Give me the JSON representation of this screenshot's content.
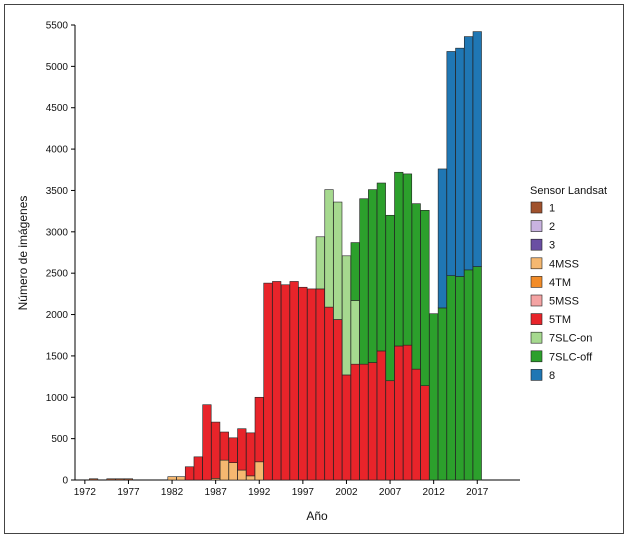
{
  "chart_data": {
    "type": "bar",
    "stacked": true,
    "xlabel": "Año",
    "ylabel": "Número de imágenes",
    "ylim": [
      0,
      5500
    ],
    "yticks": [
      0,
      500,
      1000,
      1500,
      2000,
      2500,
      3000,
      3500,
      4000,
      4500,
      5000,
      5500
    ],
    "xtick_labels": [
      "1972",
      "1977",
      "1982",
      "1987",
      "1992",
      "1997",
      "2002",
      "2007",
      "2012",
      "2017"
    ],
    "categories": [
      "1972",
      "1973",
      "1974",
      "1975",
      "1976",
      "1977",
      "1978",
      "1979",
      "1980",
      "1981",
      "1982",
      "1983",
      "1984",
      "1985",
      "1986",
      "1987",
      "1988",
      "1989",
      "1990",
      "1991",
      "1992",
      "1993",
      "1994",
      "1995",
      "1996",
      "1997",
      "1998",
      "1999",
      "2000",
      "2001",
      "2002",
      "2003",
      "2004",
      "2005",
      "2006",
      "2007",
      "2008",
      "2009",
      "2010",
      "2011",
      "2012",
      "2013",
      "2014",
      "2015",
      "2016",
      "2017"
    ],
    "legend_title": "Sensor Landsat",
    "series": [
      {
        "name": "1",
        "color": "#a0522d",
        "values": [
          0,
          15,
          0,
          15,
          15,
          15,
          0,
          0,
          0,
          0,
          0,
          0,
          0,
          0,
          0,
          0,
          0,
          0,
          0,
          0,
          0,
          0,
          0,
          0,
          0,
          0,
          0,
          0,
          0,
          0,
          0,
          0,
          0,
          0,
          0,
          0,
          0,
          0,
          0,
          0,
          0,
          0,
          0,
          0,
          0,
          0
        ]
      },
      {
        "name": "2",
        "color": "#c9b3e0",
        "values": [
          0,
          0,
          0,
          0,
          0,
          0,
          0,
          0,
          0,
          0,
          0,
          0,
          0,
          0,
          0,
          0,
          0,
          0,
          0,
          0,
          0,
          0,
          0,
          0,
          0,
          0,
          0,
          0,
          0,
          0,
          0,
          0,
          0,
          0,
          0,
          0,
          0,
          0,
          0,
          0,
          0,
          0,
          0,
          0,
          0,
          0
        ]
      },
      {
        "name": "3",
        "color": "#6a4fa3",
        "values": [
          0,
          0,
          0,
          0,
          0,
          0,
          0,
          0,
          0,
          0,
          0,
          0,
          0,
          0,
          0,
          0,
          0,
          0,
          0,
          0,
          0,
          0,
          0,
          0,
          0,
          0,
          0,
          0,
          0,
          0,
          0,
          0,
          0,
          0,
          0,
          0,
          0,
          0,
          0,
          0,
          0,
          0,
          0,
          0,
          0,
          0
        ]
      },
      {
        "name": "4MSS",
        "color": "#f5b870",
        "values": [
          0,
          0,
          0,
          0,
          0,
          0,
          0,
          0,
          0,
          0,
          40,
          40,
          0,
          0,
          0,
          20,
          240,
          210,
          120,
          50,
          220,
          0,
          0,
          0,
          0,
          0,
          0,
          0,
          0,
          0,
          0,
          0,
          0,
          0,
          0,
          0,
          0,
          0,
          0,
          0,
          0,
          0,
          0,
          0,
          0,
          0
        ]
      },
      {
        "name": "4TM",
        "color": "#f28c28",
        "values": [
          0,
          0,
          0,
          0,
          0,
          0,
          0,
          0,
          0,
          0,
          0,
          0,
          0,
          0,
          0,
          0,
          0,
          0,
          0,
          0,
          0,
          0,
          0,
          0,
          0,
          0,
          0,
          0,
          0,
          0,
          0,
          0,
          0,
          0,
          0,
          0,
          0,
          0,
          0,
          0,
          0,
          0,
          0,
          0,
          0,
          0
        ]
      },
      {
        "name": "5MSS",
        "color": "#f4a3a3",
        "values": [
          0,
          0,
          0,
          0,
          0,
          0,
          0,
          0,
          0,
          0,
          0,
          0,
          0,
          0,
          0,
          0,
          0,
          0,
          0,
          0,
          0,
          0,
          0,
          0,
          0,
          0,
          0,
          0,
          0,
          0,
          0,
          0,
          0,
          0,
          0,
          0,
          0,
          0,
          0,
          0,
          0,
          0,
          0,
          0,
          0,
          0
        ]
      },
      {
        "name": "5TM",
        "color": "#e8242a",
        "values": [
          0,
          0,
          0,
          0,
          0,
          0,
          0,
          0,
          0,
          0,
          0,
          0,
          160,
          280,
          910,
          680,
          340,
          300,
          500,
          520,
          780,
          2380,
          2400,
          2360,
          2400,
          2330,
          2310,
          2310,
          2090,
          1940,
          1270,
          1400,
          1400,
          1420,
          1560,
          1200,
          1620,
          1630,
          1340,
          1140,
          0,
          0,
          0,
          0,
          0,
          0
        ]
      },
      {
        "name": "7SLC-on",
        "color": "#a6d98f",
        "values": [
          0,
          0,
          0,
          0,
          0,
          0,
          0,
          0,
          0,
          0,
          0,
          0,
          0,
          0,
          0,
          0,
          0,
          0,
          0,
          0,
          0,
          0,
          0,
          0,
          0,
          0,
          0,
          630,
          1420,
          1420,
          1440,
          770,
          0,
          0,
          0,
          0,
          0,
          0,
          0,
          0,
          0,
          0,
          0,
          0,
          0,
          0
        ]
      },
      {
        "name": "7SLC-off",
        "color": "#2ca02c",
        "values": [
          0,
          0,
          0,
          0,
          0,
          0,
          0,
          0,
          0,
          0,
          0,
          0,
          0,
          0,
          0,
          0,
          0,
          0,
          0,
          0,
          0,
          0,
          0,
          0,
          0,
          0,
          0,
          0,
          0,
          0,
          0,
          700,
          2000,
          2090,
          2030,
          2000,
          2100,
          2070,
          2000,
          2120,
          2010,
          2080,
          2470,
          2460,
          2540,
          2580
        ]
      },
      {
        "name": "8",
        "color": "#1f77b4",
        "values": [
          0,
          0,
          0,
          0,
          0,
          0,
          0,
          0,
          0,
          0,
          0,
          0,
          0,
          0,
          0,
          0,
          0,
          0,
          0,
          0,
          0,
          0,
          0,
          0,
          0,
          0,
          0,
          0,
          0,
          0,
          0,
          0,
          0,
          0,
          0,
          0,
          0,
          0,
          0,
          0,
          0,
          1680,
          2710,
          2760,
          2820,
          2840
        ]
      }
    ]
  }
}
